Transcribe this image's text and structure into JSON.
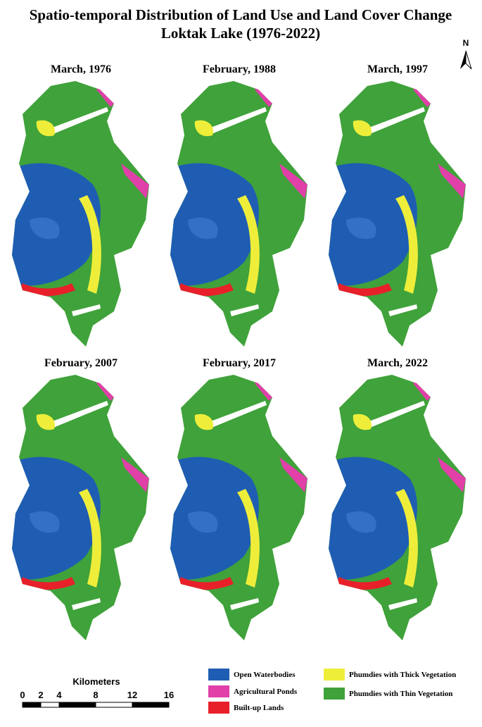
{
  "title": [
    "Spatio-temporal Distribution of Land Use and Land Cover Change",
    "Loktak Lake (1976-2022)"
  ],
  "north": "N",
  "panels": [
    {
      "label": "March, 1976"
    },
    {
      "label": "February, 1988"
    },
    {
      "label": "March, 1997"
    },
    {
      "label": "February, 2007"
    },
    {
      "label": "February, 2017"
    },
    {
      "label": "March, 2022"
    }
  ],
  "scale_bar": {
    "unit": "Kilometers",
    "ticks": [
      0,
      2,
      4,
      8,
      12,
      16
    ]
  },
  "legend": [
    {
      "label": "Open Waterbodies",
      "color": "#1f5db3"
    },
    {
      "label": "Agricultural Ponds",
      "color": "#e040a8"
    },
    {
      "label": "Built-up Lands",
      "color": "#e8202a"
    },
    {
      "label": "Phumdies with Thick Vegetation",
      "color": "#eeee3a"
    },
    {
      "label": "Phumdies with Thin Vegetation",
      "color": "#3fa23a"
    }
  ]
}
